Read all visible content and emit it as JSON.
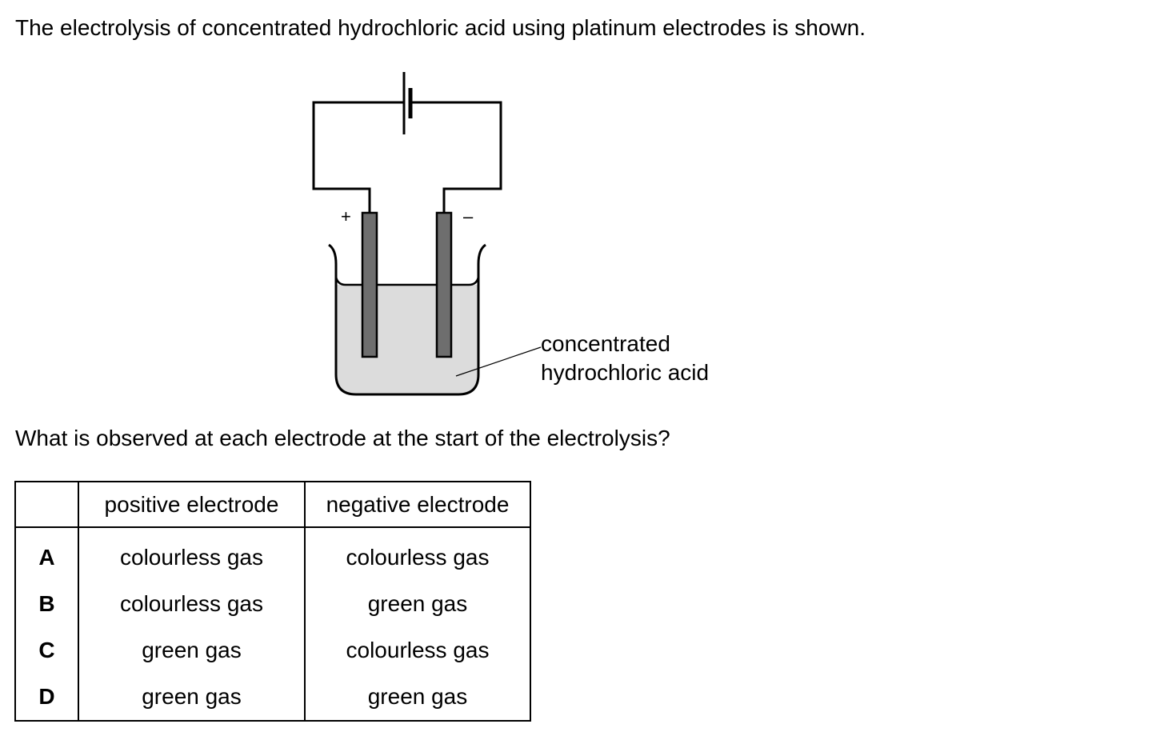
{
  "question": {
    "intro": "The electrolysis of concentrated hydrochloric acid using platinum electrodes is shown.",
    "prompt": "What is observed at each electrode at the start of the electrolysis?"
  },
  "diagram": {
    "positive_sign": "+",
    "negative_sign": "–",
    "solution_label_line1": "concentrated",
    "solution_label_line2": "hydrochloric acid",
    "colors": {
      "solution": "#dcdcdc",
      "electrode": "#6e6e6e",
      "outline": "#000000"
    }
  },
  "table": {
    "headers": [
      "",
      "positive electrode",
      "negative electrode"
    ],
    "rows": [
      {
        "option": "A",
        "positive": "colourless gas",
        "negative": "colourless gas"
      },
      {
        "option": "B",
        "positive": "colourless gas",
        "negative": "green gas"
      },
      {
        "option": "C",
        "positive": "green gas",
        "negative": "colourless gas"
      },
      {
        "option": "D",
        "positive": "green gas",
        "negative": "green gas"
      }
    ]
  }
}
